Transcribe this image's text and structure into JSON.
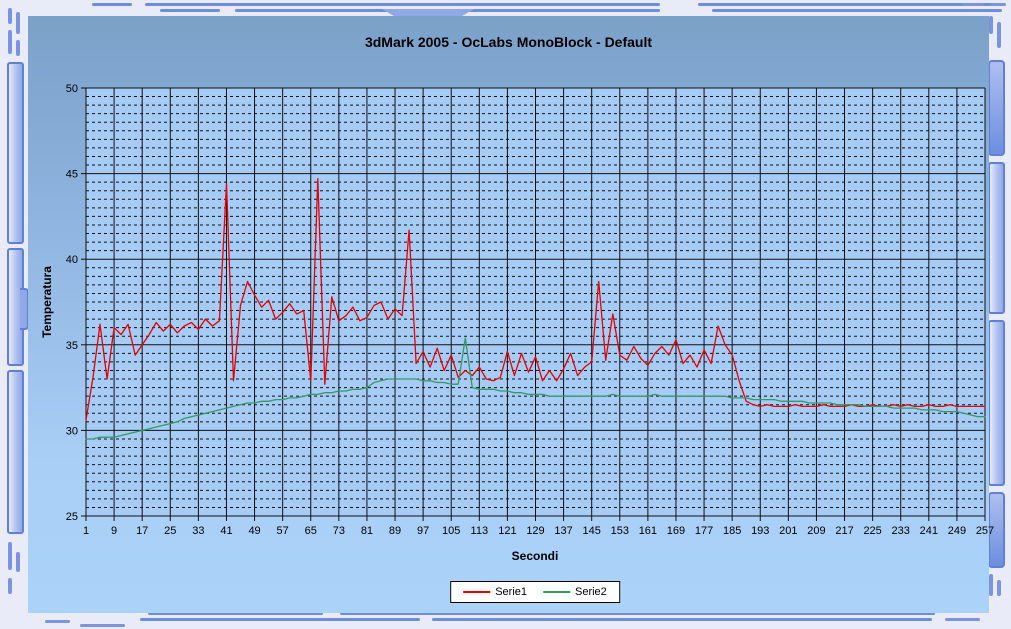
{
  "colors": {
    "series1": "#e80000",
    "series2": "#339966",
    "plot_background": "#a6cbf4",
    "grid_line": "#111111",
    "panel_gradient_top": "#7ba1c9",
    "panel_gradient_bottom": "#abd2f8",
    "frame_background": "#e9ebf8",
    "frame_accent": "#5f80d8",
    "legend_background": "#ffffff"
  },
  "chart_data": {
    "type": "line",
    "title": "3dMark 2005 - OcLabs MonoBlock - Default",
    "xlabel": "Secondi",
    "ylabel": "Temperatura",
    "xlim": [
      1,
      257
    ],
    "ylim": [
      25,
      50
    ],
    "x_ticks": [
      1,
      9,
      17,
      25,
      33,
      41,
      49,
      57,
      65,
      73,
      81,
      89,
      97,
      105,
      113,
      121,
      129,
      137,
      145,
      153,
      161,
      169,
      177,
      185,
      193,
      201,
      209,
      217,
      225,
      233,
      241,
      249,
      257
    ],
    "y_ticks": [
      25,
      30,
      35,
      40,
      45,
      50
    ],
    "y_minor_step": 0.5,
    "grid": true,
    "legend_position": "bottom-center",
    "x": [
      1,
      3,
      5,
      7,
      9,
      11,
      13,
      15,
      17,
      19,
      21,
      23,
      25,
      27,
      29,
      31,
      33,
      35,
      37,
      39,
      41,
      43,
      45,
      47,
      49,
      51,
      53,
      55,
      57,
      59,
      61,
      63,
      65,
      67,
      69,
      71,
      73,
      75,
      77,
      79,
      81,
      83,
      85,
      87,
      89,
      91,
      93,
      95,
      97,
      99,
      101,
      103,
      105,
      107,
      109,
      111,
      113,
      115,
      117,
      119,
      121,
      123,
      125,
      127,
      129,
      131,
      133,
      135,
      137,
      139,
      141,
      143,
      145,
      147,
      149,
      151,
      153,
      155,
      157,
      159,
      161,
      163,
      165,
      167,
      169,
      171,
      173,
      175,
      177,
      179,
      181,
      183,
      185,
      187,
      189,
      191,
      193,
      195,
      197,
      199,
      201,
      203,
      205,
      207,
      209,
      211,
      213,
      215,
      217,
      219,
      221,
      223,
      225,
      227,
      229,
      231,
      233,
      235,
      237,
      239,
      241,
      243,
      245,
      247,
      249,
      251,
      253,
      255,
      257
    ],
    "series": [
      {
        "name": "Serie1",
        "color": "#e80000",
        "values": [
          30.6,
          33.1,
          36.2,
          33.0,
          36.0,
          35.6,
          36.2,
          34.4,
          35.0,
          35.6,
          36.3,
          35.8,
          36.2,
          35.7,
          36.1,
          36.3,
          35.9,
          36.5,
          36.1,
          36.4,
          44.4,
          32.9,
          37.3,
          38.7,
          37.9,
          37.2,
          37.6,
          36.5,
          36.9,
          37.4,
          36.8,
          37.0,
          32.9,
          44.7,
          32.7,
          37.8,
          36.4,
          36.7,
          37.2,
          36.4,
          36.6,
          37.3,
          37.5,
          36.5,
          37.1,
          36.7,
          41.7,
          33.9,
          34.6,
          33.7,
          34.8,
          33.5,
          34.4,
          33.1,
          33.5,
          33.2,
          33.7,
          33.0,
          32.9,
          33.1,
          34.6,
          33.2,
          34.5,
          33.4,
          34.3,
          32.9,
          33.5,
          32.9,
          33.6,
          34.5,
          33.2,
          33.7,
          34.0,
          38.7,
          34.1,
          36.8,
          34.4,
          34.1,
          34.9,
          34.2,
          33.8,
          34.5,
          34.9,
          34.4,
          35.3,
          33.9,
          34.4,
          33.7,
          34.7,
          33.9,
          36.1,
          35.0,
          34.4,
          32.9,
          31.7,
          31.5,
          31.4,
          31.5,
          31.4,
          31.4,
          31.4,
          31.5,
          31.4,
          31.4,
          31.4,
          31.5,
          31.4,
          31.4,
          31.4,
          31.5,
          31.4,
          31.4,
          31.5,
          31.4,
          31.4,
          31.5,
          31.4,
          31.5,
          31.4,
          31.4,
          31.5,
          31.4,
          31.4,
          31.5,
          31.4,
          31.4,
          31.4,
          31.4,
          31.4
        ]
      },
      {
        "name": "Serie2",
        "color": "#339966",
        "values": [
          29.5,
          29.5,
          29.6,
          29.6,
          29.6,
          29.7,
          29.8,
          29.9,
          30.0,
          30.1,
          30.2,
          30.3,
          30.4,
          30.5,
          30.7,
          30.8,
          30.9,
          31.0,
          31.1,
          31.2,
          31.3,
          31.4,
          31.5,
          31.6,
          31.6,
          31.7,
          31.7,
          31.8,
          31.8,
          31.9,
          31.9,
          32.0,
          32.1,
          32.1,
          32.2,
          32.2,
          32.3,
          32.3,
          32.4,
          32.4,
          32.5,
          32.8,
          32.9,
          33.0,
          33.0,
          33.0,
          33.0,
          33.0,
          32.9,
          32.9,
          32.8,
          32.8,
          32.7,
          32.7,
          35.4,
          32.5,
          32.4,
          32.4,
          32.4,
          32.3,
          32.3,
          32.2,
          32.2,
          32.1,
          32.1,
          32.1,
          32.0,
          32.0,
          32.0,
          32.0,
          32.0,
          32.0,
          32.0,
          32.0,
          32.0,
          32.1,
          32.0,
          32.0,
          32.0,
          32.0,
          32.0,
          32.1,
          32.0,
          32.0,
          32.0,
          32.0,
          32.0,
          32.0,
          32.0,
          32.0,
          32.0,
          32.0,
          31.9,
          31.9,
          31.9,
          31.8,
          31.8,
          31.8,
          31.8,
          31.7,
          31.7,
          31.7,
          31.7,
          31.6,
          31.6,
          31.6,
          31.6,
          31.5,
          31.5,
          31.5,
          31.5,
          31.4,
          31.4,
          31.4,
          31.4,
          31.3,
          31.3,
          31.3,
          31.3,
          31.2,
          31.2,
          31.2,
          31.1,
          31.1,
          31.1,
          31.0,
          30.9,
          30.8,
          30.8
        ]
      }
    ]
  }
}
